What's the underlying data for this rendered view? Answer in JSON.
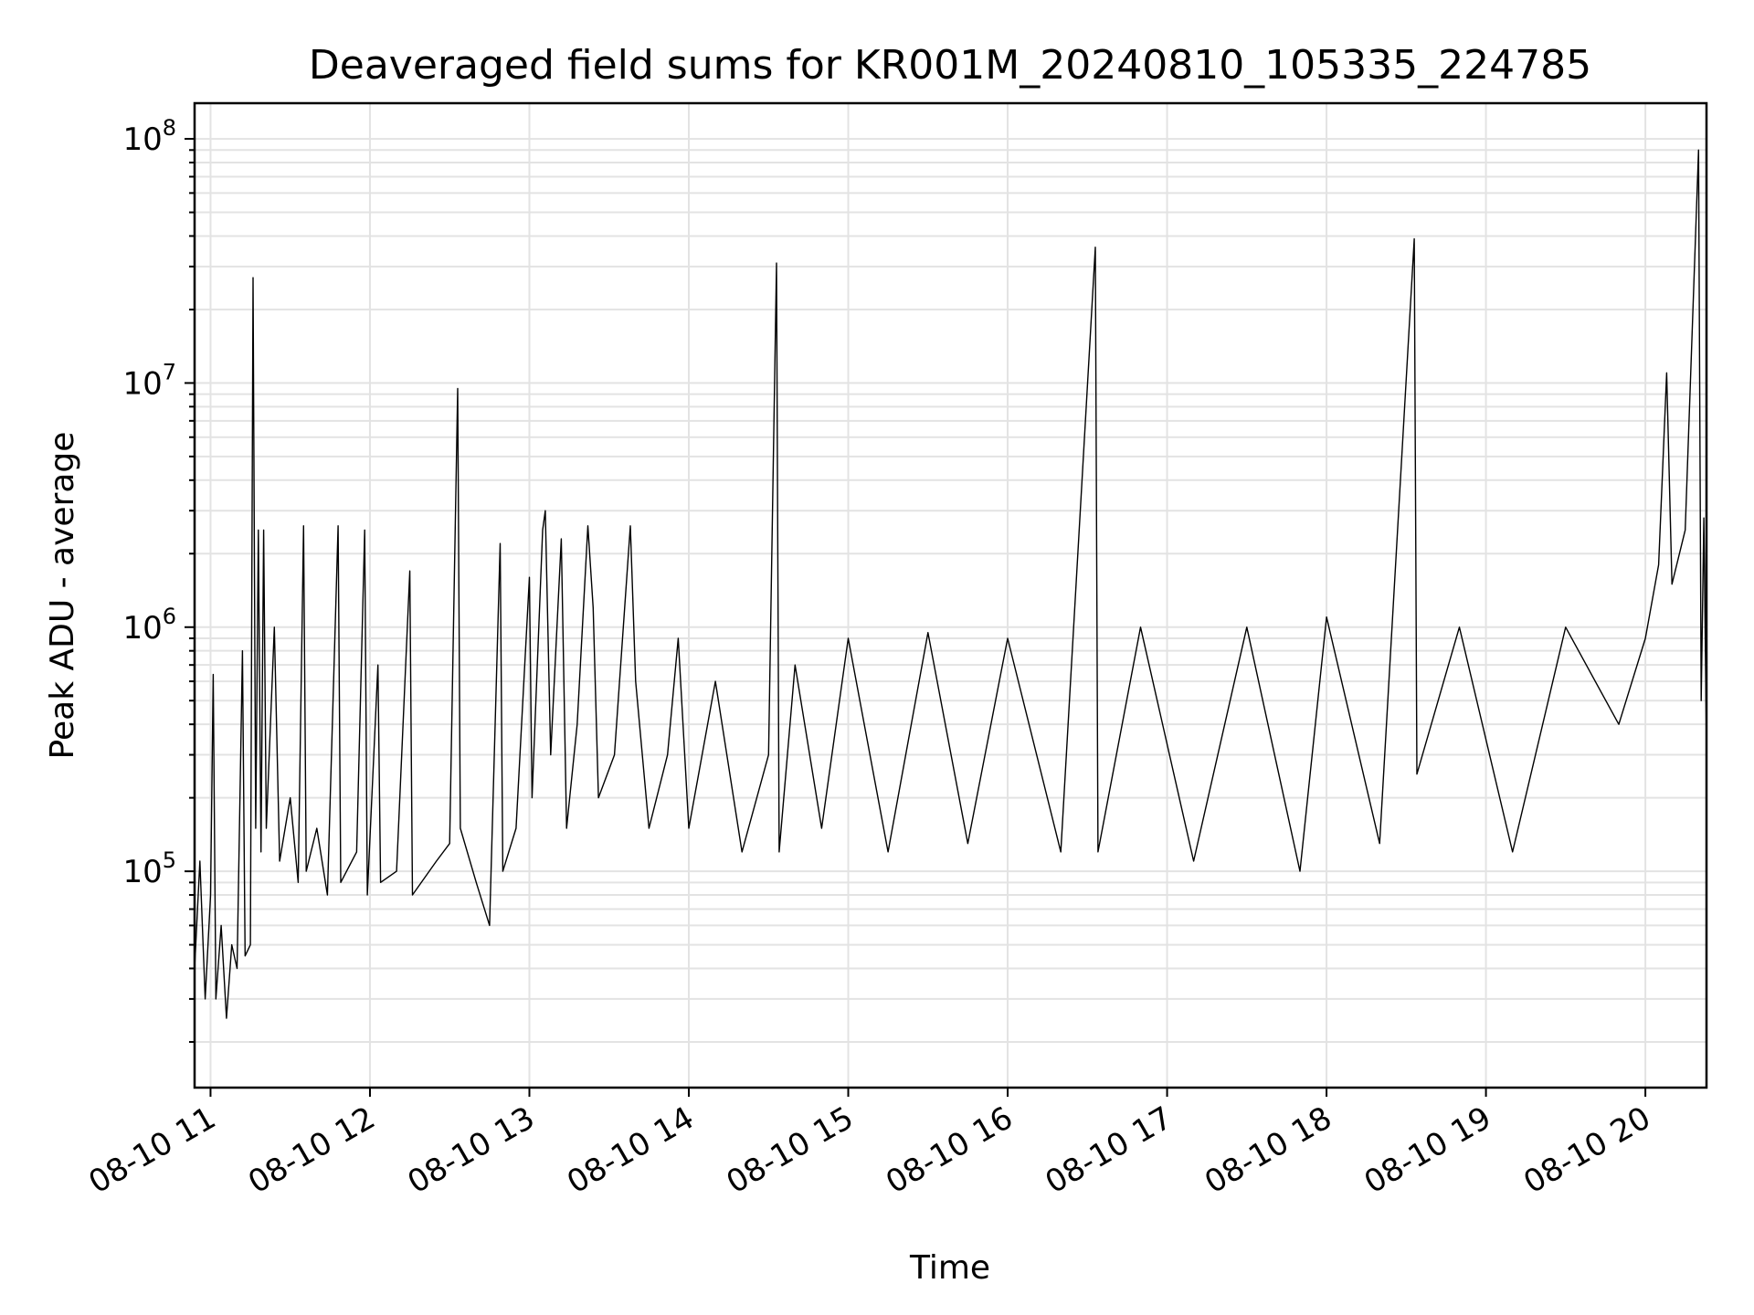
{
  "chart_data": {
    "type": "line",
    "title": "Deaveraged field sums for KR001M_20240810_105335_224785",
    "xlabel": "Time",
    "ylabel": "Peak ADU - average",
    "y_scale": "log",
    "grid": "major and minor",
    "x_ticks": [
      "08-10 11",
      "08-10 12",
      "08-10 13",
      "08-10 14",
      "08-10 15",
      "08-10 16",
      "08-10 17",
      "08-10 18",
      "08-10 19",
      "08-10 20"
    ],
    "x_tick_values": [
      "2024-08-10 11:00",
      "2024-08-10 12:00",
      "2024-08-10 13:00",
      "2024-08-10 14:00",
      "2024-08-10 15:00",
      "2024-08-10 16:00",
      "2024-08-10 17:00",
      "2024-08-10 18:00",
      "2024-08-10 19:00",
      "2024-08-10 20:00"
    ],
    "y_ticks": [
      {
        "mantissa": "10",
        "exponent": "5",
        "value": 100000
      },
      {
        "mantissa": "10",
        "exponent": "6",
        "value": 1000000
      },
      {
        "mantissa": "10",
        "exponent": "7",
        "value": 10000000
      },
      {
        "mantissa": "10",
        "exponent": "8",
        "value": 100000000
      }
    ],
    "xlim": [
      "2024-08-10 10:54",
      "2024-08-10 20:23"
    ],
    "ylim": [
      13000,
      140000000
    ],
    "series": [
      {
        "color": "#000000",
        "points": [
          [
            "2024-08-10 10:54",
            40000
          ],
          [
            "2024-08-10 10:56",
            110000
          ],
          [
            "2024-08-10 10:58",
            30000
          ],
          [
            "2024-08-10 11:00",
            80000
          ],
          [
            "2024-08-10 11:01",
            640000
          ],
          [
            "2024-08-10 11:02",
            30000
          ],
          [
            "2024-08-10 11:04",
            60000
          ],
          [
            "2024-08-10 11:06",
            25000
          ],
          [
            "2024-08-10 11:08",
            50000
          ],
          [
            "2024-08-10 11:10",
            40000
          ],
          [
            "2024-08-10 11:12",
            800000
          ],
          [
            "2024-08-10 11:13",
            45000
          ],
          [
            "2024-08-10 11:15",
            50000
          ],
          [
            "2024-08-10 11:16",
            27000000
          ],
          [
            "2024-08-10 11:17",
            150000
          ],
          [
            "2024-08-10 11:18",
            2500000
          ],
          [
            "2024-08-10 11:19",
            120000
          ],
          [
            "2024-08-10 11:20",
            2500000
          ],
          [
            "2024-08-10 11:21",
            150000
          ],
          [
            "2024-08-10 11:24",
            1000000
          ],
          [
            "2024-08-10 11:26",
            110000
          ],
          [
            "2024-08-10 11:30",
            200000
          ],
          [
            "2024-08-10 11:33",
            90000
          ],
          [
            "2024-08-10 11:35",
            2600000
          ],
          [
            "2024-08-10 11:36",
            100000
          ],
          [
            "2024-08-10 11:40",
            150000
          ],
          [
            "2024-08-10 11:44",
            80000
          ],
          [
            "2024-08-10 11:48",
            2600000
          ],
          [
            "2024-08-10 11:49",
            90000
          ],
          [
            "2024-08-10 11:55",
            120000
          ],
          [
            "2024-08-10 11:58",
            2500000
          ],
          [
            "2024-08-10 11:59",
            80000
          ],
          [
            "2024-08-10 12:03",
            700000
          ],
          [
            "2024-08-10 12:04",
            90000
          ],
          [
            "2024-08-10 12:10",
            100000
          ],
          [
            "2024-08-10 12:15",
            1700000
          ],
          [
            "2024-08-10 12:16",
            80000
          ],
          [
            "2024-08-10 12:25",
            110000
          ],
          [
            "2024-08-10 12:30",
            130000
          ],
          [
            "2024-08-10 12:33",
            9500000
          ],
          [
            "2024-08-10 12:34",
            150000
          ],
          [
            "2024-08-10 12:40",
            90000
          ],
          [
            "2024-08-10 12:45",
            60000
          ],
          [
            "2024-08-10 12:49",
            2200000
          ],
          [
            "2024-08-10 12:50",
            100000
          ],
          [
            "2024-08-10 12:55",
            150000
          ],
          [
            "2024-08-10 13:00",
            1600000
          ],
          [
            "2024-08-10 13:01",
            200000
          ],
          [
            "2024-08-10 13:05",
            2500000
          ],
          [
            "2024-08-10 13:06",
            3000000
          ],
          [
            "2024-08-10 13:08",
            300000
          ],
          [
            "2024-08-10 13:12",
            2300000
          ],
          [
            "2024-08-10 13:14",
            150000
          ],
          [
            "2024-08-10 13:18",
            400000
          ],
          [
            "2024-08-10 13:22",
            2600000
          ],
          [
            "2024-08-10 13:24",
            1200000
          ],
          [
            "2024-08-10 13:26",
            200000
          ],
          [
            "2024-08-10 13:32",
            300000
          ],
          [
            "2024-08-10 13:38",
            2600000
          ],
          [
            "2024-08-10 13:40",
            600000
          ],
          [
            "2024-08-10 13:45",
            150000
          ],
          [
            "2024-08-10 13:52",
            300000
          ],
          [
            "2024-08-10 13:56",
            900000
          ],
          [
            "2024-08-10 14:00",
            150000
          ],
          [
            "2024-08-10 14:10",
            600000
          ],
          [
            "2024-08-10 14:20",
            120000
          ],
          [
            "2024-08-10 14:30",
            300000
          ],
          [
            "2024-08-10 14:33",
            31000000
          ],
          [
            "2024-08-10 14:34",
            120000
          ],
          [
            "2024-08-10 14:40",
            700000
          ],
          [
            "2024-08-10 14:50",
            150000
          ],
          [
            "2024-08-10 15:00",
            900000
          ],
          [
            "2024-08-10 15:15",
            120000
          ],
          [
            "2024-08-10 15:30",
            950000
          ],
          [
            "2024-08-10 15:45",
            130000
          ],
          [
            "2024-08-10 16:00",
            900000
          ],
          [
            "2024-08-10 16:20",
            120000
          ],
          [
            "2024-08-10 16:33",
            36000000
          ],
          [
            "2024-08-10 16:34",
            120000
          ],
          [
            "2024-08-10 16:50",
            1000000
          ],
          [
            "2024-08-10 17:10",
            110000
          ],
          [
            "2024-08-10 17:30",
            1000000
          ],
          [
            "2024-08-10 17:50",
            100000
          ],
          [
            "2024-08-10 18:00",
            1100000
          ],
          [
            "2024-08-10 18:20",
            130000
          ],
          [
            "2024-08-10 18:33",
            39000000
          ],
          [
            "2024-08-10 18:34",
            250000
          ],
          [
            "2024-08-10 18:50",
            1000000
          ],
          [
            "2024-08-10 19:10",
            120000
          ],
          [
            "2024-08-10 19:30",
            1000000
          ],
          [
            "2024-08-10 19:50",
            400000
          ],
          [
            "2024-08-10 20:00",
            900000
          ],
          [
            "2024-08-10 20:05",
            1800000
          ],
          [
            "2024-08-10 20:08",
            11000000
          ],
          [
            "2024-08-10 20:10",
            1500000
          ],
          [
            "2024-08-10 20:15",
            2500000
          ],
          [
            "2024-08-10 20:20",
            90000000
          ],
          [
            "2024-08-10 20:21",
            500000
          ],
          [
            "2024-08-10 20:22",
            2800000
          ],
          [
            "2024-08-10 20:23",
            330000
          ]
        ]
      }
    ]
  }
}
